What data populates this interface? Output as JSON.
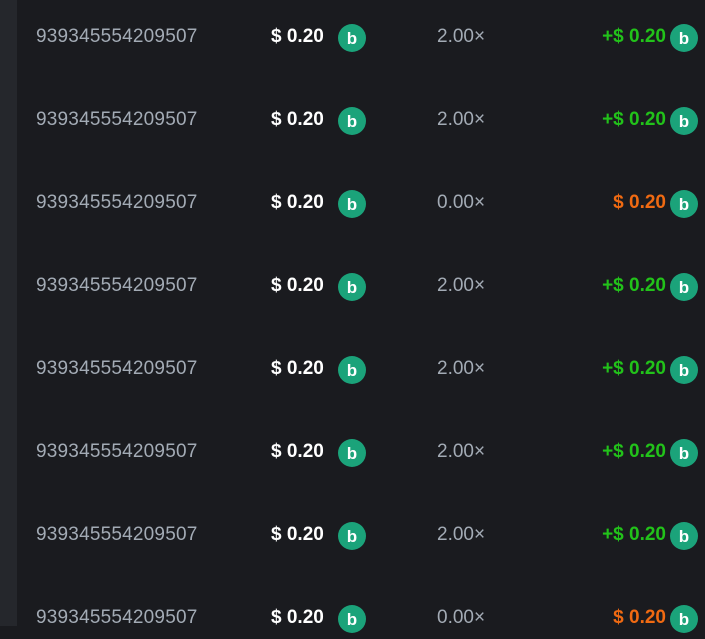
{
  "colors": {
    "win": "#22c21a",
    "loss": "#f06a12",
    "coin": "#1ba37a"
  },
  "coin_icon": "currency-coin-icon",
  "rows": [
    {
      "id": "939345554209507",
      "bet": "$ 0.20",
      "multiplier": "2.00×",
      "payout": "+$ 0.20",
      "result": "win"
    },
    {
      "id": "939345554209507",
      "bet": "$ 0.20",
      "multiplier": "2.00×",
      "payout": "+$ 0.20",
      "result": "win"
    },
    {
      "id": "939345554209507",
      "bet": "$ 0.20",
      "multiplier": "0.00×",
      "payout": "$ 0.20",
      "result": "loss"
    },
    {
      "id": "939345554209507",
      "bet": "$ 0.20",
      "multiplier": "2.00×",
      "payout": "+$ 0.20",
      "result": "win"
    },
    {
      "id": "939345554209507",
      "bet": "$ 0.20",
      "multiplier": "2.00×",
      "payout": "+$ 0.20",
      "result": "win"
    },
    {
      "id": "939345554209507",
      "bet": "$ 0.20",
      "multiplier": "2.00×",
      "payout": "+$ 0.20",
      "result": "win"
    },
    {
      "id": "939345554209507",
      "bet": "$ 0.20",
      "multiplier": "2.00×",
      "payout": "+$ 0.20",
      "result": "win"
    },
    {
      "id": "939345554209507",
      "bet": "$ 0.20",
      "multiplier": "0.00×",
      "payout": "$ 0.20",
      "result": "loss"
    }
  ]
}
